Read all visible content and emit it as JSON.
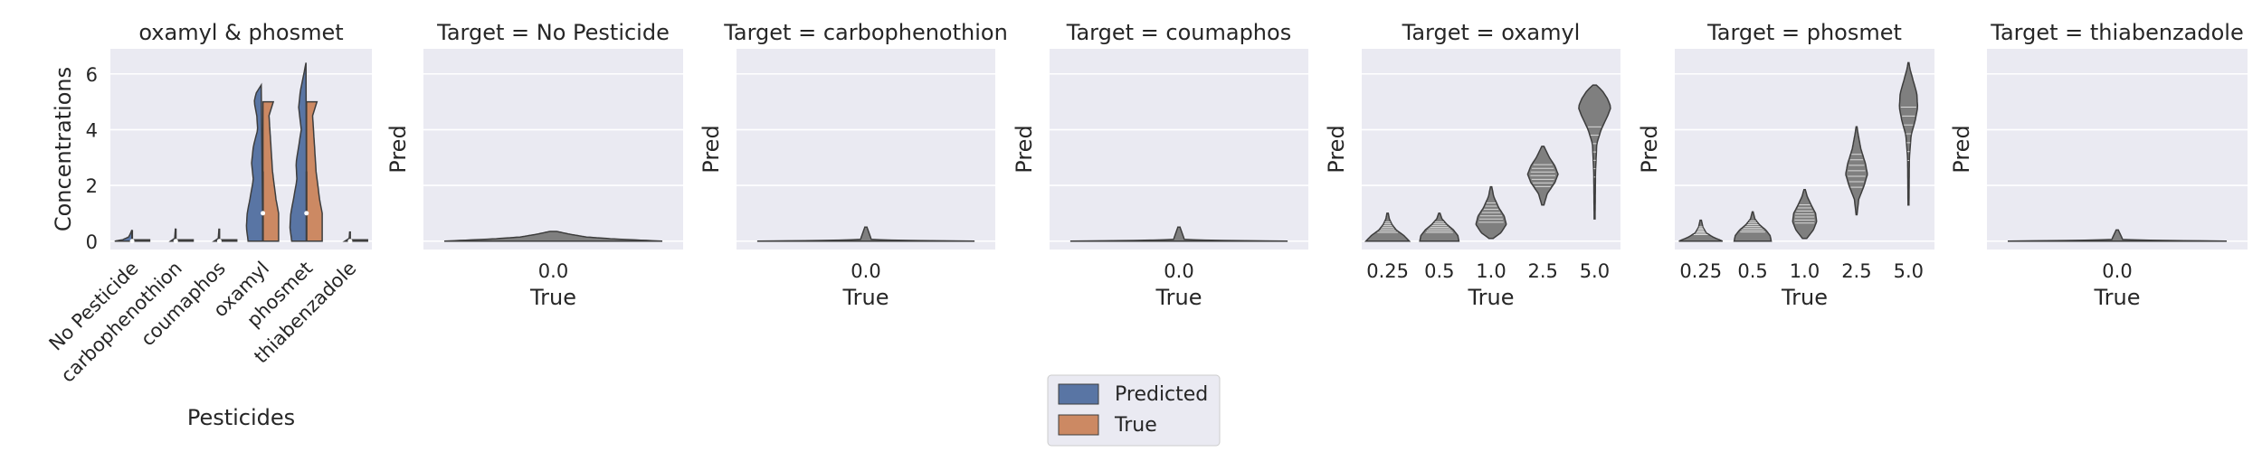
{
  "chart_data": [
    {
      "type": "violin",
      "title": "oxamyl & phosmet",
      "xlabel": "Pesticides",
      "ylabel": "Concentrations",
      "ylim": [
        -0.3,
        6.9
      ],
      "yticks": [
        0,
        2,
        4,
        6
      ],
      "split": true,
      "categories": [
        "No Pesticide",
        "carbophenothion",
        "coumaphos",
        "oxamyl",
        "phosmet",
        "thiabenzadole"
      ],
      "series": [
        {
          "name": "Predicted",
          "color": "#5975a4",
          "violins": [
            {
              "min": 0.0,
              "max": 0.4,
              "shape": [
                [
                  0.0,
                  1.0
                ],
                [
                  0.05,
                  0.55
                ],
                [
                  0.15,
                  0.2
                ],
                [
                  0.3,
                  0.08
                ],
                [
                  0.4,
                  0.02
                ]
              ]
            },
            {
              "min": 0.0,
              "max": 0.45,
              "shape": [
                [
                  0.0,
                  0.3
                ],
                [
                  0.1,
                  0.06
                ],
                [
                  0.45,
                  0.02
                ]
              ]
            },
            {
              "min": 0.0,
              "max": 0.45,
              "shape": [
                [
                  0.0,
                  0.3
                ],
                [
                  0.1,
                  0.06
                ],
                [
                  0.45,
                  0.02
                ]
              ]
            },
            {
              "min": 0.0,
              "max": 5.6,
              "shape": [
                [
                  0.0,
                  0.85
                ],
                [
                  0.5,
                  0.95
                ],
                [
                  1.0,
                  0.9
                ],
                [
                  1.5,
                  0.75
                ],
                [
                  2.2,
                  0.55
                ],
                [
                  2.8,
                  0.65
                ],
                [
                  3.4,
                  0.55
                ],
                [
                  4.0,
                  0.3
                ],
                [
                  4.5,
                  0.35
                ],
                [
                  5.0,
                  0.5
                ],
                [
                  5.3,
                  0.4
                ],
                [
                  5.6,
                  0.1
                ]
              ]
            },
            {
              "min": 0.0,
              "max": 6.4,
              "shape": [
                [
                  0.0,
                  0.85
                ],
                [
                  0.5,
                  0.95
                ],
                [
                  1.0,
                  0.9
                ],
                [
                  1.5,
                  0.75
                ],
                [
                  2.2,
                  0.55
                ],
                [
                  2.8,
                  0.6
                ],
                [
                  3.4,
                  0.45
                ],
                [
                  4.0,
                  0.3
                ],
                [
                  4.8,
                  0.45
                ],
                [
                  5.4,
                  0.35
                ],
                [
                  6.0,
                  0.15
                ],
                [
                  6.4,
                  0.03
                ]
              ]
            },
            {
              "min": 0.0,
              "max": 0.35,
              "shape": [
                [
                  0.0,
                  0.3
                ],
                [
                  0.1,
                  0.05
                ],
                [
                  0.35,
                  0.02
                ]
              ]
            }
          ]
        },
        {
          "name": "True",
          "color": "#cc8963",
          "violins": [
            {
              "min": 0.0,
              "max": 0.05,
              "shape": [
                [
                  0.0,
                  1.0
                ],
                [
                  0.05,
                  1.0
                ]
              ]
            },
            {
              "min": 0.0,
              "max": 0.05,
              "shape": [
                [
                  0.0,
                  1.0
                ],
                [
                  0.05,
                  1.0
                ]
              ]
            },
            {
              "min": 0.0,
              "max": 0.05,
              "shape": [
                [
                  0.0,
                  1.0
                ],
                [
                  0.05,
                  1.0
                ]
              ]
            },
            {
              "min": 0.0,
              "max": 5.0,
              "shape": [
                [
                  0.0,
                  0.9
                ],
                [
                  1.0,
                  0.9
                ],
                [
                  1.5,
                  0.75
                ],
                [
                  2.5,
                  0.55
                ],
                [
                  3.5,
                  0.45
                ],
                [
                  4.5,
                  0.35
                ],
                [
                  5.0,
                  0.6
                ]
              ]
            },
            {
              "min": 0.0,
              "max": 5.0,
              "shape": [
                [
                  0.0,
                  0.9
                ],
                [
                  1.0,
                  0.9
                ],
                [
                  1.5,
                  0.75
                ],
                [
                  2.5,
                  0.55
                ],
                [
                  3.5,
                  0.45
                ],
                [
                  4.5,
                  0.35
                ],
                [
                  5.0,
                  0.6
                ]
              ]
            },
            {
              "min": 0.0,
              "max": 0.05,
              "shape": [
                [
                  0.0,
                  1.0
                ],
                [
                  0.05,
                  1.0
                ]
              ]
            }
          ]
        }
      ]
    },
    {
      "type": "violin",
      "title": "Target = No Pesticide",
      "xlabel": "True",
      "ylabel": "Pred",
      "ylim": [
        -0.3,
        6.9
      ],
      "categories": [
        "0.0"
      ],
      "color": "#7f7f7f",
      "violins": [
        {
          "min": 0.0,
          "max": 0.35,
          "shape": [
            [
              0.0,
              1.0
            ],
            [
              0.08,
              0.55
            ],
            [
              0.15,
              0.3
            ],
            [
              0.25,
              0.15
            ],
            [
              0.35,
              0.03
            ]
          ]
        }
      ]
    },
    {
      "type": "violin",
      "title": "Target = carbophenothion",
      "xlabel": "True",
      "ylabel": "Pred",
      "ylim": [
        -0.3,
        6.9
      ],
      "categories": [
        "0.0"
      ],
      "color": "#7f7f7f",
      "violins": [
        {
          "min": 0.0,
          "max": 0.5,
          "shape": [
            [
              0.0,
              1.0
            ],
            [
              0.03,
              0.3
            ],
            [
              0.06,
              0.05
            ],
            [
              0.5,
              0.01
            ]
          ]
        }
      ]
    },
    {
      "type": "violin",
      "title": "Target = coumaphos",
      "xlabel": "True",
      "ylabel": "Pred",
      "ylim": [
        -0.3,
        6.9
      ],
      "categories": [
        "0.0"
      ],
      "color": "#7f7f7f",
      "violins": [
        {
          "min": 0.0,
          "max": 0.5,
          "shape": [
            [
              0.0,
              1.0
            ],
            [
              0.03,
              0.3
            ],
            [
              0.06,
              0.05
            ],
            [
              0.5,
              0.01
            ]
          ]
        }
      ]
    },
    {
      "type": "violin",
      "title": "Target = oxamyl",
      "xlabel": "True",
      "ylabel": "Pred",
      "ylim": [
        -0.3,
        6.9
      ],
      "categories": [
        "0.25",
        "0.5",
        "1.0",
        "2.5",
        "5.0"
      ],
      "color": "#7f7f7f",
      "violins": [
        {
          "min": 0.0,
          "max": 1.0,
          "shape": [
            [
              0.0,
              1.0
            ],
            [
              0.2,
              0.75
            ],
            [
              0.4,
              0.4
            ],
            [
              0.6,
              0.2
            ],
            [
              0.8,
              0.08
            ],
            [
              1.0,
              0.03
            ]
          ]
        },
        {
          "min": 0.0,
          "max": 1.0,
          "shape": [
            [
              0.0,
              0.9
            ],
            [
              0.2,
              0.85
            ],
            [
              0.4,
              0.65
            ],
            [
              0.6,
              0.35
            ],
            [
              0.8,
              0.12
            ],
            [
              1.0,
              0.03
            ]
          ]
        },
        {
          "min": 0.1,
          "max": 1.95,
          "shape": [
            [
              0.1,
              0.1
            ],
            [
              0.3,
              0.45
            ],
            [
              0.6,
              0.7
            ],
            [
              0.9,
              0.6
            ],
            [
              1.2,
              0.35
            ],
            [
              1.6,
              0.12
            ],
            [
              1.95,
              0.03
            ]
          ]
        },
        {
          "min": 1.3,
          "max": 3.4,
          "shape": [
            [
              1.3,
              0.05
            ],
            [
              1.7,
              0.2
            ],
            [
              2.1,
              0.55
            ],
            [
              2.4,
              0.7
            ],
            [
              2.7,
              0.55
            ],
            [
              3.0,
              0.3
            ],
            [
              3.4,
              0.05
            ]
          ]
        },
        {
          "min": 0.8,
          "max": 5.6,
          "shape": [
            [
              0.8,
              0.02
            ],
            [
              2.5,
              0.04
            ],
            [
              3.5,
              0.1
            ],
            [
              4.0,
              0.3
            ],
            [
              4.5,
              0.6
            ],
            [
              4.8,
              0.75
            ],
            [
              5.1,
              0.6
            ],
            [
              5.4,
              0.35
            ],
            [
              5.6,
              0.08
            ]
          ]
        }
      ]
    },
    {
      "type": "violin",
      "title": "Target = phosmet",
      "xlabel": "True",
      "ylabel": "Pred",
      "ylim": [
        -0.3,
        6.9
      ],
      "categories": [
        "0.25",
        "0.5",
        "1.0",
        "2.5",
        "5.0"
      ],
      "color": "#7f7f7f",
      "violins": [
        {
          "min": 0.0,
          "max": 0.75,
          "shape": [
            [
              0.0,
              1.0
            ],
            [
              0.15,
              0.55
            ],
            [
              0.3,
              0.25
            ],
            [
              0.5,
              0.1
            ],
            [
              0.75,
              0.03
            ]
          ]
        },
        {
          "min": 0.0,
          "max": 1.05,
          "shape": [
            [
              0.0,
              0.85
            ],
            [
              0.2,
              0.8
            ],
            [
              0.4,
              0.6
            ],
            [
              0.6,
              0.3
            ],
            [
              0.8,
              0.1
            ],
            [
              1.05,
              0.02
            ]
          ]
        },
        {
          "min": 0.1,
          "max": 1.85,
          "shape": [
            [
              0.1,
              0.1
            ],
            [
              0.4,
              0.4
            ],
            [
              0.7,
              0.55
            ],
            [
              1.0,
              0.5
            ],
            [
              1.3,
              0.3
            ],
            [
              1.6,
              0.12
            ],
            [
              1.85,
              0.03
            ]
          ]
        },
        {
          "min": 0.95,
          "max": 4.1,
          "shape": [
            [
              0.95,
              0.02
            ],
            [
              1.5,
              0.1
            ],
            [
              2.0,
              0.35
            ],
            [
              2.4,
              0.5
            ],
            [
              2.8,
              0.4
            ],
            [
              3.3,
              0.2
            ],
            [
              3.8,
              0.08
            ],
            [
              4.1,
              0.02
            ]
          ]
        },
        {
          "min": 1.3,
          "max": 6.4,
          "shape": [
            [
              1.3,
              0.02
            ],
            [
              3.0,
              0.04
            ],
            [
              3.8,
              0.12
            ],
            [
              4.3,
              0.3
            ],
            [
              4.8,
              0.42
            ],
            [
              5.3,
              0.38
            ],
            [
              5.8,
              0.2
            ],
            [
              6.2,
              0.06
            ],
            [
              6.4,
              0.02
            ]
          ]
        }
      ]
    },
    {
      "type": "violin",
      "title": "Target = thiabenzadole",
      "xlabel": "True",
      "ylabel": "Pred",
      "ylim": [
        -0.3,
        6.9
      ],
      "categories": [
        "0.0"
      ],
      "color": "#7f7f7f",
      "violins": [
        {
          "min": 0.0,
          "max": 0.4,
          "shape": [
            [
              0.0,
              1.0
            ],
            [
              0.03,
              0.3
            ],
            [
              0.06,
              0.05
            ],
            [
              0.4,
              0.01
            ]
          ]
        }
      ]
    }
  ],
  "legend": {
    "placement": "bottom-center",
    "items": [
      {
        "label": "Predicted",
        "color": "#5975a4"
      },
      {
        "label": "True",
        "color": "#cc8963"
      }
    ]
  }
}
